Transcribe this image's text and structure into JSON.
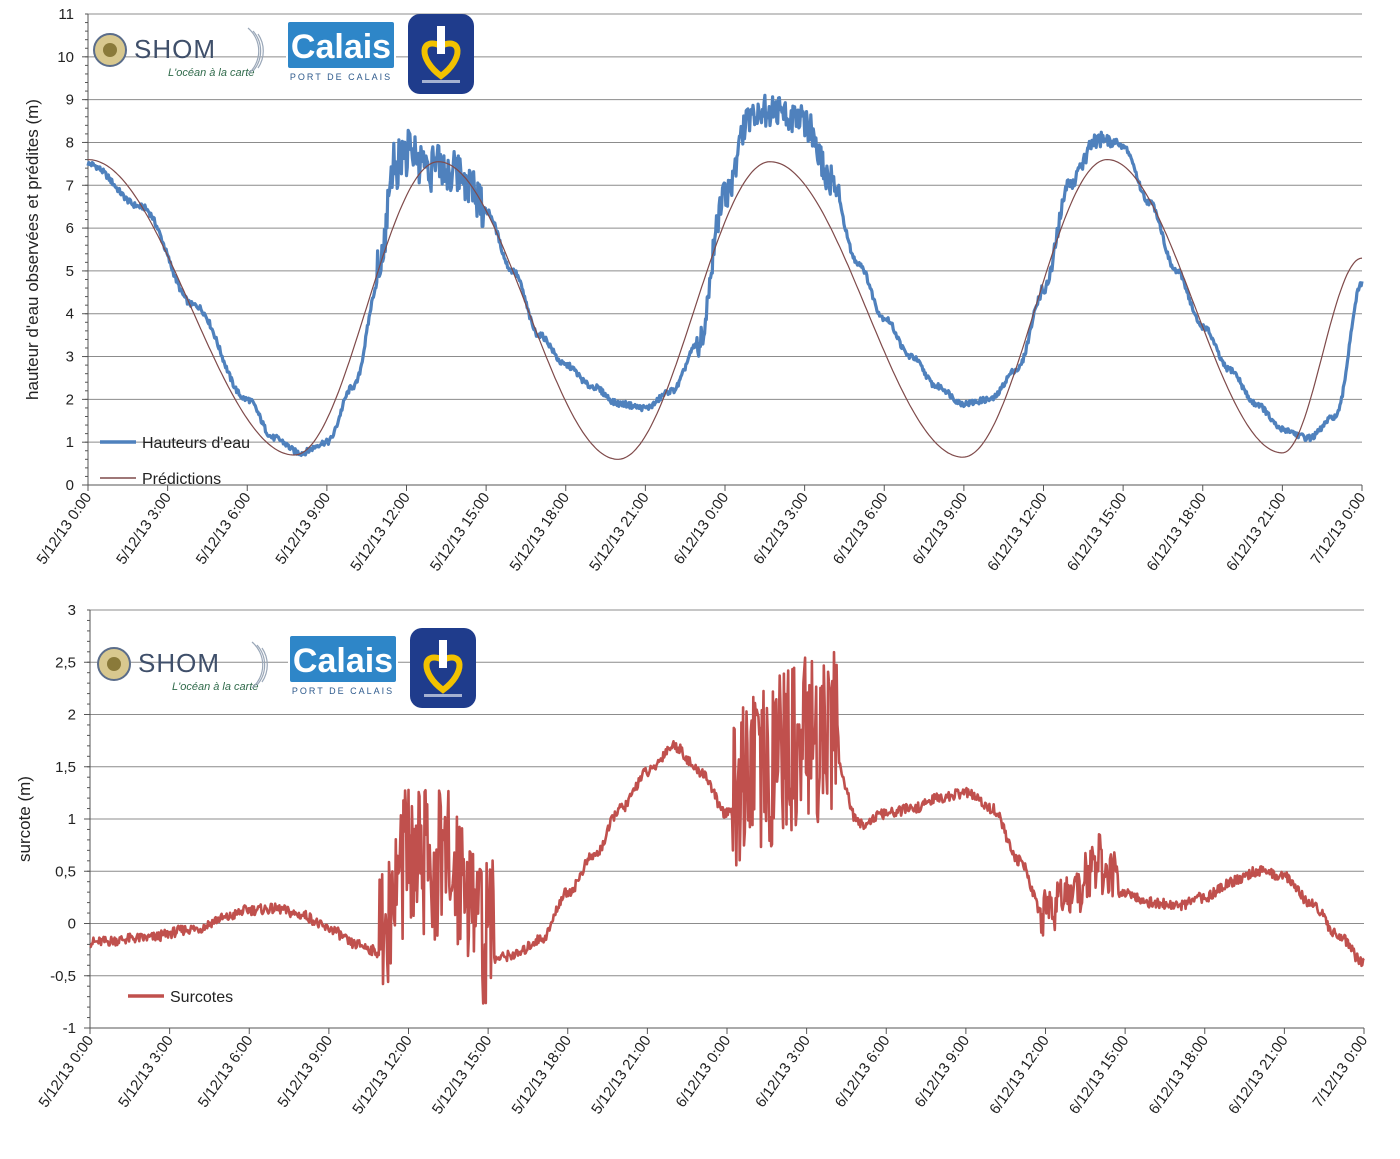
{
  "chart_data": [
    {
      "type": "line",
      "ylabel": "hauteur d'eau observées et prédites (m)",
      "ylim": [
        0,
        11
      ],
      "yticks": [
        0,
        1,
        2,
        3,
        4,
        5,
        6,
        7,
        8,
        9,
        10,
        11
      ],
      "xlim": [
        0,
        48
      ],
      "xticks": [
        "5/12/13 0:00",
        "5/12/13 3:00",
        "5/12/13 6:00",
        "5/12/13 9:00",
        "5/12/13 12:00",
        "5/12/13 15:00",
        "5/12/13 18:00",
        "5/12/13 21:00",
        "6/12/13 0:00",
        "6/12/13 3:00",
        "6/12/13 6:00",
        "6/12/13 9:00",
        "6/12/13 12:00",
        "6/12/13 15:00",
        "6/12/13 18:00",
        "6/12/13 21:00",
        "7/12/13 0:00"
      ],
      "grid": true,
      "legend": "bottom-left",
      "logos": [
        "SHOM",
        "Calais",
        "Port de Calais seal"
      ],
      "logo_text": {
        "shom": "SHOM",
        "shom_tag": "L'océan à la carte",
        "calais": "Calais",
        "calais_sub": "PORT DE CALAIS"
      },
      "series": [
        {
          "name": "Hauteurs d'eau",
          "color": "#4f81bd",
          "x": [
            "5/12/13 0:00",
            "5/12/13 2:00",
            "5/12/13 4:00",
            "5/12/13 6:00",
            "5/12/13 7:00",
            "5/12/13 8:00",
            "5/12/13 9:00",
            "5/12/13 10:00",
            "5/12/13 11:00",
            "5/12/13 11:30",
            "5/12/13 12:00",
            "5/12/13 13:00",
            "5/12/13 14:00",
            "5/12/13 15:00",
            "5/12/13 16:00",
            "5/12/13 17:00",
            "5/12/13 18:00",
            "5/12/13 19:00",
            "5/12/13 20:00",
            "5/12/13 21:00",
            "5/12/13 22:00",
            "5/12/13 23:00",
            "6/12/13 0:00",
            "6/12/13 1:00",
            "6/12/13 2:00",
            "6/12/13 3:00",
            "6/12/13 4:00",
            "6/12/13 5:00",
            "6/12/13 6:00",
            "6/12/13 7:00",
            "6/12/13 8:00",
            "6/12/13 9:00",
            "6/12/13 10:00",
            "6/12/13 11:00",
            "6/12/13 12:00",
            "6/12/13 13:00",
            "6/12/13 14:00",
            "6/12/13 15:00",
            "6/12/13 16:00",
            "6/12/13 17:00",
            "6/12/13 18:00",
            "6/12/13 19:00",
            "6/12/13 20:00",
            "6/12/13 21:00",
            "6/12/13 22:00",
            "6/12/13 23:00",
            "7/12/13 0:00"
          ],
          "y": [
            7.5,
            6.5,
            4.2,
            2.0,
            1.1,
            0.75,
            1.0,
            2.3,
            4.8,
            7.3,
            7.6,
            7.3,
            7.1,
            6.4,
            5.0,
            3.5,
            2.8,
            2.3,
            1.9,
            1.8,
            2.2,
            3.3,
            6.7,
            8.6,
            8.6,
            8.4,
            7.0,
            5.2,
            3.9,
            3.0,
            2.3,
            1.9,
            2.0,
            2.7,
            4.5,
            7.0,
            8.0,
            7.9,
            6.6,
            5.0,
            3.7,
            2.7,
            1.9,
            1.3,
            1.1,
            1.6,
            4.7
          ]
        },
        {
          "name": "Prédictions",
          "color": "#7f4a4a",
          "x": [
            "5/12/13 0:00",
            "5/12/13 7:46",
            "5/12/13 13:12",
            "5/12/13 19:58",
            "6/12/13 1:42",
            "6/12/13 8:58",
            "6/12/13 14:24",
            "6/12/13 21:00",
            "7/12/13 0:00"
          ],
          "y": [
            7.6,
            0.7,
            7.55,
            0.6,
            7.55,
            0.65,
            7.6,
            0.75,
            5.3
          ]
        }
      ]
    },
    {
      "type": "line",
      "ylabel": "surcote (m)",
      "ylim": [
        -1,
        3
      ],
      "yticks": [
        "-1",
        "-0,5",
        "0",
        "0,5",
        "1",
        "1,5",
        "2",
        "2,5",
        "3"
      ],
      "xlim": [
        0,
        48
      ],
      "xticks": [
        "5/12/13 0:00",
        "5/12/13 3:00",
        "5/12/13 6:00",
        "5/12/13 9:00",
        "5/12/13 12:00",
        "5/12/13 15:00",
        "5/12/13 18:00",
        "5/12/13 21:00",
        "6/12/13 0:00",
        "6/12/13 3:00",
        "6/12/13 6:00",
        "6/12/13 9:00",
        "6/12/13 12:00",
        "6/12/13 15:00",
        "6/12/13 18:00",
        "6/12/13 21:00",
        "7/12/13 0:00"
      ],
      "grid": true,
      "legend": "bottom-left",
      "logos": [
        "SHOM",
        "Calais",
        "Port de Calais seal"
      ],
      "logo_text": {
        "shom": "SHOM",
        "shom_tag": "L'océan à la carte",
        "calais": "Calais",
        "calais_sub": "PORT DE CALAIS"
      },
      "series": [
        {
          "name": "Surcotes",
          "color": "#c0504d",
          "x": [
            "5/12/13 0:00",
            "5/12/13 2:00",
            "5/12/13 4:00",
            "5/12/13 5:00",
            "5/12/13 6:00",
            "5/12/13 7:00",
            "5/12/13 8:00",
            "5/12/13 9:00",
            "5/12/13 10:00",
            "5/12/13 11:00",
            "5/12/13 12:00",
            "5/12/13 13:00",
            "5/12/13 14:00",
            "5/12/13 15:00",
            "5/12/13 16:00",
            "5/12/13 17:00",
            "5/12/13 18:00",
            "5/12/13 19:00",
            "5/12/13 20:00",
            "5/12/13 21:00",
            "5/12/13 22:00",
            "5/12/13 23:00",
            "6/12/13 0:00",
            "6/12/13 1:00",
            "6/12/13 2:00",
            "6/12/13 3:00",
            "6/12/13 4:00",
            "6/12/13 5:00",
            "6/12/13 6:00",
            "6/12/13 7:00",
            "6/12/13 8:00",
            "6/12/13 9:00",
            "6/12/13 10:00",
            "6/12/13 11:00",
            "6/12/13 12:00",
            "6/12/13 13:00",
            "6/12/13 14:00",
            "6/12/13 15:00",
            "6/12/13 16:00",
            "6/12/13 17:00",
            "6/12/13 18:00",
            "6/12/13 19:00",
            "6/12/13 20:00",
            "6/12/13 21:00",
            "6/12/13 22:00",
            "6/12/13 23:00",
            "7/12/13 0:00"
          ],
          "y": [
            -0.18,
            -0.14,
            -0.05,
            0.05,
            0.13,
            0.14,
            0.08,
            -0.05,
            -0.2,
            -0.28,
            0.4,
            0.3,
            0.3,
            -0.35,
            -0.3,
            -0.15,
            0.3,
            0.65,
            1.1,
            1.45,
            1.7,
            1.45,
            1.05,
            1.1,
            1.35,
            1.5,
            1.6,
            0.95,
            1.05,
            1.1,
            1.2,
            1.25,
            1.1,
            0.6,
            0.05,
            0.25,
            0.5,
            0.3,
            0.2,
            0.17,
            0.25,
            0.4,
            0.5,
            0.45,
            0.2,
            -0.1,
            -0.38
          ]
        }
      ]
    }
  ]
}
